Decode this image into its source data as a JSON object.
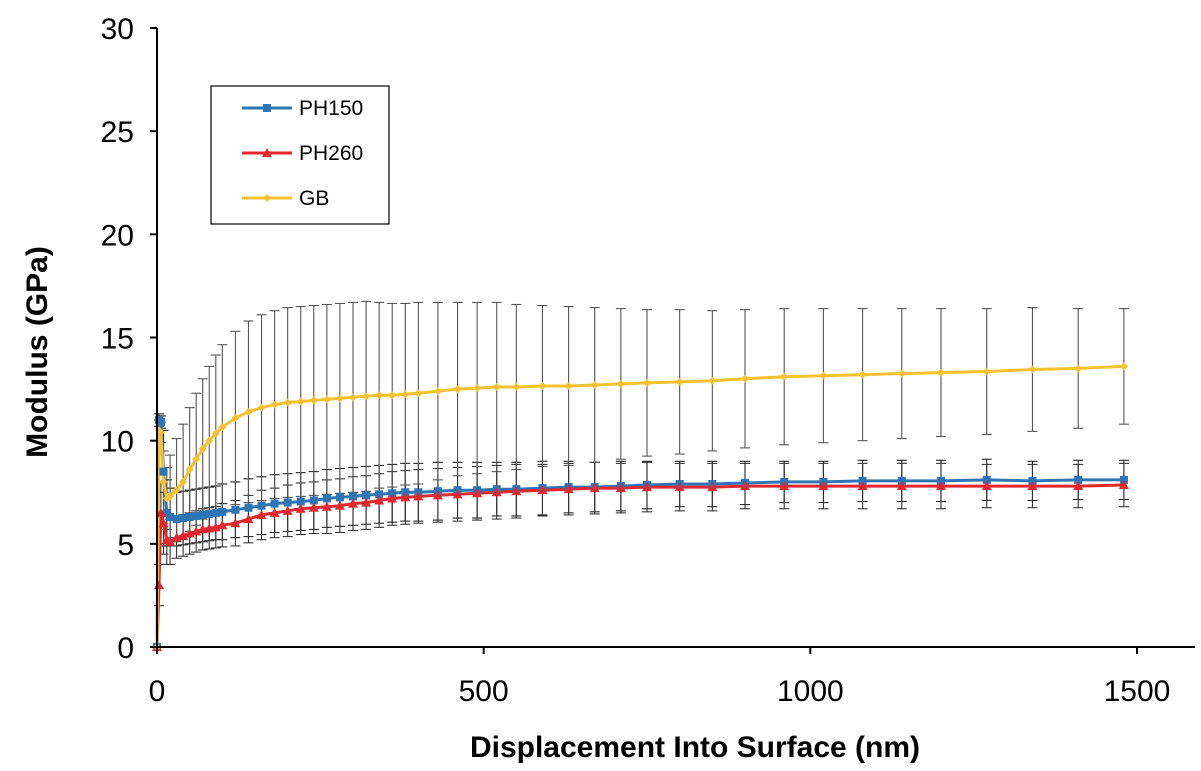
{
  "chart_data": {
    "type": "line",
    "title": "",
    "xlabel": "Displacement Into Surface (nm)",
    "ylabel": "Modulus (GPa)",
    "xlim": [
      0,
      1500
    ],
    "ylim": [
      0,
      30
    ],
    "xticks": [
      0,
      500,
      1000,
      1500
    ],
    "yticks": [
      0,
      5,
      10,
      15,
      20,
      25,
      30
    ],
    "grid": false,
    "legend_position": "top-left",
    "series": [
      {
        "name": "PH150",
        "color": "#2E75B6",
        "marker": "square",
        "x": [
          0,
          3,
          6,
          10,
          15,
          20,
          30,
          40,
          50,
          60,
          70,
          80,
          90,
          100,
          120,
          140,
          160,
          180,
          200,
          220,
          240,
          260,
          280,
          300,
          320,
          340,
          360,
          380,
          400,
          430,
          460,
          490,
          520,
          550,
          590,
          630,
          670,
          710,
          750,
          800,
          850,
          900,
          960,
          1020,
          1080,
          1140,
          1200,
          1270,
          1340,
          1410,
          1480
        ],
        "y": [
          0,
          11.0,
          10.9,
          8.5,
          6.5,
          6.3,
          6.2,
          6.25,
          6.3,
          6.35,
          6.4,
          6.45,
          6.5,
          6.55,
          6.65,
          6.75,
          6.85,
          6.95,
          7.0,
          7.05,
          7.1,
          7.2,
          7.25,
          7.3,
          7.35,
          7.4,
          7.45,
          7.5,
          7.5,
          7.55,
          7.6,
          7.6,
          7.65,
          7.65,
          7.7,
          7.75,
          7.75,
          7.8,
          7.85,
          7.9,
          7.9,
          7.95,
          8.0,
          8.0,
          8.05,
          8.05,
          8.05,
          8.1,
          8.05,
          8.1,
          8.1
        ],
        "error": [
          0,
          0.3,
          0.3,
          2.0,
          1.6,
          1.4,
          1.3,
          1.3,
          1.3,
          1.3,
          1.3,
          1.3,
          1.3,
          1.35,
          1.35,
          1.4,
          1.4,
          1.4,
          1.4,
          1.4,
          1.4,
          1.4,
          1.4,
          1.4,
          1.4,
          1.4,
          1.4,
          1.4,
          1.4,
          1.4,
          1.35,
          1.35,
          1.3,
          1.3,
          1.3,
          1.25,
          1.2,
          1.2,
          1.15,
          1.1,
          1.1,
          1.05,
          1.0,
          1.0,
          1.0,
          1.0,
          1.0,
          1.0,
          0.95,
          0.95,
          0.95
        ]
      },
      {
        "name": "PH260",
        "color": "#E0282E",
        "marker": "triangle",
        "x": [
          0,
          3,
          6,
          10,
          15,
          20,
          30,
          40,
          50,
          60,
          70,
          80,
          90,
          100,
          120,
          140,
          160,
          180,
          200,
          220,
          240,
          260,
          280,
          300,
          320,
          340,
          360,
          380,
          400,
          430,
          460,
          490,
          520,
          550,
          590,
          630,
          670,
          710,
          750,
          800,
          850,
          900,
          960,
          1020,
          1080,
          1140,
          1200,
          1270,
          1340,
          1410,
          1480
        ],
        "y": [
          0,
          3.0,
          6.5,
          6.0,
          5.2,
          5.1,
          5.3,
          5.4,
          5.5,
          5.6,
          5.7,
          5.75,
          5.8,
          5.9,
          6.0,
          6.2,
          6.4,
          6.5,
          6.6,
          6.7,
          6.75,
          6.8,
          6.85,
          6.95,
          7.0,
          7.1,
          7.2,
          7.25,
          7.3,
          7.35,
          7.4,
          7.45,
          7.5,
          7.55,
          7.6,
          7.65,
          7.7,
          7.7,
          7.75,
          7.75,
          7.75,
          7.8,
          7.8,
          7.8,
          7.8,
          7.8,
          7.8,
          7.8,
          7.8,
          7.8,
          7.85
        ],
        "error": [
          0,
          1.0,
          1.5,
          1.5,
          1.2,
          1.1,
          1.0,
          1.0,
          1.0,
          1.0,
          1.0,
          1.0,
          1.0,
          1.05,
          1.1,
          1.15,
          1.2,
          1.2,
          1.25,
          1.25,
          1.25,
          1.3,
          1.3,
          1.3,
          1.3,
          1.3,
          1.3,
          1.3,
          1.3,
          1.3,
          1.3,
          1.3,
          1.3,
          1.3,
          1.25,
          1.25,
          1.25,
          1.2,
          1.2,
          1.15,
          1.15,
          1.1,
          1.1,
          1.1,
          1.1,
          1.1,
          1.1,
          1.05,
          1.05,
          1.05,
          1.05
        ]
      },
      {
        "name": "GB",
        "color": "#F5C12E",
        "marker": "diamond",
        "x": [
          0,
          3,
          6,
          10,
          15,
          20,
          30,
          40,
          50,
          60,
          70,
          80,
          90,
          100,
          120,
          140,
          160,
          180,
          200,
          220,
          240,
          260,
          280,
          300,
          320,
          340,
          360,
          380,
          400,
          430,
          460,
          490,
          520,
          550,
          590,
          630,
          670,
          710,
          750,
          800,
          850,
          900,
          960,
          1020,
          1080,
          1140,
          1200,
          1270,
          1340,
          1410,
          1480
        ],
        "y": [
          0,
          10.5,
          10.4,
          8.0,
          7.2,
          7.3,
          7.6,
          8.0,
          8.6,
          9.1,
          9.6,
          10.0,
          10.35,
          10.65,
          11.1,
          11.4,
          11.6,
          11.75,
          11.85,
          11.9,
          11.95,
          12.0,
          12.05,
          12.1,
          12.15,
          12.2,
          12.2,
          12.25,
          12.3,
          12.4,
          12.5,
          12.55,
          12.6,
          12.6,
          12.65,
          12.65,
          12.7,
          12.75,
          12.8,
          12.85,
          12.9,
          13.0,
          13.1,
          13.15,
          13.2,
          13.25,
          13.3,
          13.35,
          13.45,
          13.5,
          13.6
        ],
        "error": [
          0,
          0.5,
          0.5,
          1.5,
          1.5,
          2.0,
          2.5,
          2.8,
          3.0,
          3.2,
          3.4,
          3.6,
          3.8,
          4.0,
          4.2,
          4.4,
          4.5,
          4.55,
          4.6,
          4.6,
          4.6,
          4.6,
          4.6,
          4.6,
          4.6,
          4.5,
          4.45,
          4.4,
          4.4,
          4.3,
          4.2,
          4.15,
          4.1,
          4.0,
          3.9,
          3.85,
          3.75,
          3.65,
          3.55,
          3.5,
          3.4,
          3.35,
          3.3,
          3.25,
          3.2,
          3.15,
          3.1,
          3.05,
          3.0,
          2.9,
          2.8
        ]
      }
    ]
  }
}
